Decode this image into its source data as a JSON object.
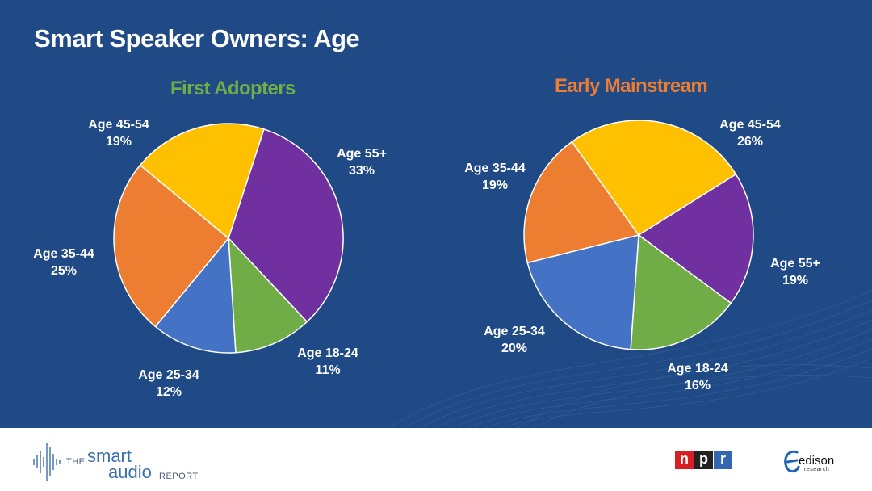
{
  "title": "Smart Speaker Owners: Age",
  "chart_data": [
    {
      "type": "pie",
      "title": "First Adopters",
      "title_color": "#70ad47",
      "start_angle_deg": 18,
      "slices": [
        {
          "label": "Age 55+",
          "value": 33,
          "text": "33%",
          "color": "#7030a0"
        },
        {
          "label": "Age 18-24",
          "value": 11,
          "text": "11%",
          "color": "#70ad47"
        },
        {
          "label": "Age 25-34",
          "value": 12,
          "text": "12%",
          "color": "#4472c4"
        },
        {
          "label": "Age 35-44",
          "value": 25,
          "text": "25%",
          "color": "#ed7d31"
        },
        {
          "label": "Age 45-54",
          "value": 19,
          "text": "19%",
          "color": "#ffc000"
        }
      ]
    },
    {
      "type": "pie",
      "title": "Early Mainstream",
      "title_color": "#ed7d31",
      "start_angle_deg": 58,
      "slices": [
        {
          "label": "Age 55+",
          "value": 19,
          "text": "19%",
          "color": "#7030a0"
        },
        {
          "label": "Age 18-24",
          "value": 16,
          "text": "16%",
          "color": "#70ad47"
        },
        {
          "label": "Age 25-34",
          "value": 20,
          "text": "20%",
          "color": "#4472c4"
        },
        {
          "label": "Age 35-44",
          "value": 19,
          "text": "19%",
          "color": "#ed7d31"
        },
        {
          "label": "Age 45-54",
          "value": 26,
          "text": "26%",
          "color": "#ffc000"
        }
      ]
    }
  ],
  "footer": {
    "report_the": "THE",
    "report_smart": "smart",
    "report_audio": "audio",
    "report_report": "REPORT",
    "npr_letters": [
      "n",
      "p",
      "r"
    ],
    "edison_word": "edison",
    "edison_sub": "research"
  }
}
